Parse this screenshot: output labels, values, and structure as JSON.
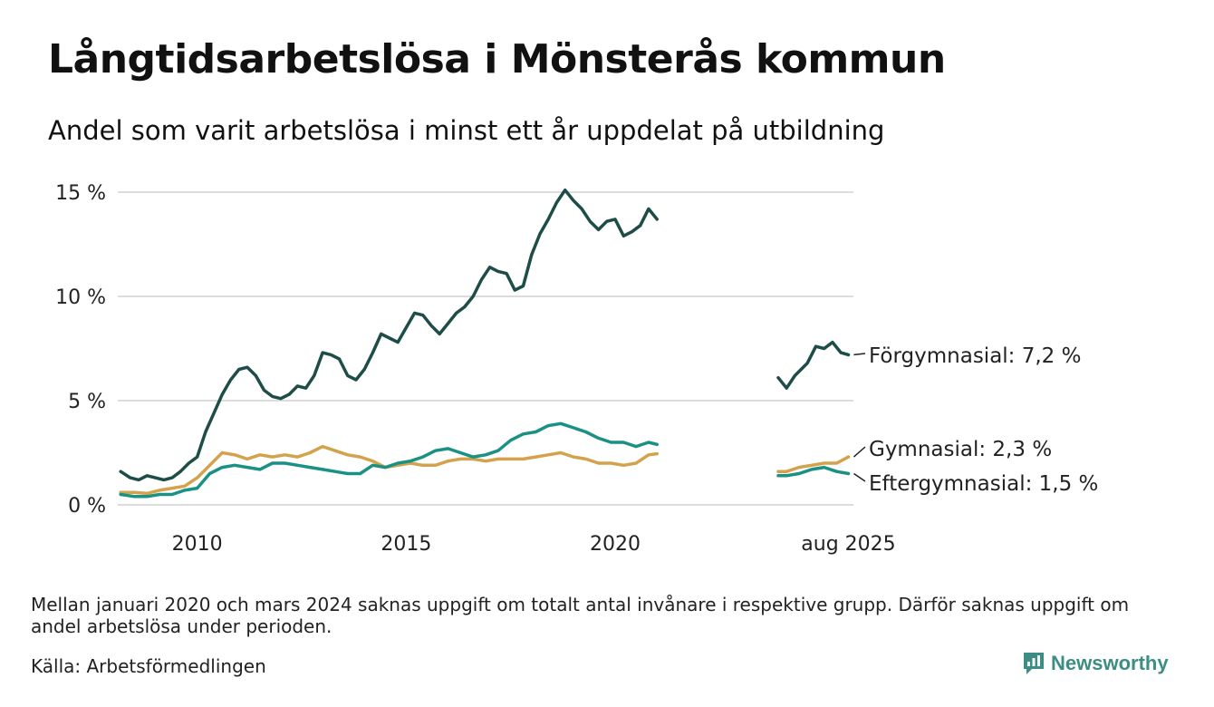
{
  "title": "Långtidsarbetslösa i Mönsterås kommun",
  "subtitle": "Andel som varit arbetslösa i minst ett år uppdelat på utbildning",
  "note": "Mellan januari 2020 och mars 2024 saknas uppgift om totalt antal invånare i respektive grupp. Därför saknas uppgift om andel arbetslösa under perioden.",
  "source": "Källa: Arbetsförmedlingen",
  "brand": "Newsworthy",
  "chart_data": {
    "type": "line",
    "y_tick_labels": [
      "0 %",
      "5 %",
      "10 %",
      "15 %"
    ],
    "y_ticks": [
      0,
      5,
      10,
      15
    ],
    "ylim": [
      0,
      15
    ],
    "x_tick_labels": [
      "2010",
      "2015",
      "2020",
      "aug 2025"
    ],
    "x_ticks": [
      2010,
      2015,
      2020,
      2025.58
    ],
    "xlim": [
      2008.1,
      2025.7
    ],
    "grid": true,
    "series": [
      {
        "name": "Förgymnasial",
        "end_label": "Förgymnasial: 7,2 %",
        "color": "#1e4d47",
        "segments": [
          [
            [
              2008.17,
              1.6
            ],
            [
              2008.4,
              1.3
            ],
            [
              2008.6,
              1.2
            ],
            [
              2008.8,
              1.4
            ],
            [
              2009.0,
              1.3
            ],
            [
              2009.2,
              1.2
            ],
            [
              2009.4,
              1.3
            ],
            [
              2009.6,
              1.6
            ],
            [
              2009.8,
              2.0
            ],
            [
              2010.0,
              2.3
            ],
            [
              2010.2,
              3.5
            ],
            [
              2010.4,
              4.4
            ],
            [
              2010.6,
              5.3
            ],
            [
              2010.8,
              6.0
            ],
            [
              2011.0,
              6.5
            ],
            [
              2011.2,
              6.6
            ],
            [
              2011.4,
              6.2
            ],
            [
              2011.6,
              5.5
            ],
            [
              2011.8,
              5.2
            ],
            [
              2012.0,
              5.1
            ],
            [
              2012.2,
              5.3
            ],
            [
              2012.4,
              5.7
            ],
            [
              2012.6,
              5.6
            ],
            [
              2012.8,
              6.2
            ],
            [
              2013.0,
              7.3
            ],
            [
              2013.2,
              7.2
            ],
            [
              2013.4,
              7.0
            ],
            [
              2013.6,
              6.2
            ],
            [
              2013.8,
              6.0
            ],
            [
              2014.0,
              6.5
            ],
            [
              2014.2,
              7.3
            ],
            [
              2014.4,
              8.2
            ],
            [
              2014.6,
              8.0
            ],
            [
              2014.8,
              7.8
            ],
            [
              2015.0,
              8.5
            ],
            [
              2015.2,
              9.2
            ],
            [
              2015.4,
              9.1
            ],
            [
              2015.6,
              8.6
            ],
            [
              2015.8,
              8.2
            ],
            [
              2016.0,
              8.7
            ],
            [
              2016.2,
              9.2
            ],
            [
              2016.4,
              9.5
            ],
            [
              2016.6,
              10.0
            ],
            [
              2016.8,
              10.8
            ],
            [
              2017.0,
              11.4
            ],
            [
              2017.2,
              11.2
            ],
            [
              2017.4,
              11.1
            ],
            [
              2017.6,
              10.3
            ],
            [
              2017.8,
              10.5
            ],
            [
              2018.0,
              12.0
            ],
            [
              2018.2,
              13.0
            ],
            [
              2018.4,
              13.7
            ],
            [
              2018.6,
              14.5
            ],
            [
              2018.8,
              15.1
            ],
            [
              2019.0,
              14.6
            ],
            [
              2019.2,
              14.2
            ],
            [
              2019.4,
              13.6
            ],
            [
              2019.6,
              13.2
            ],
            [
              2019.8,
              13.6
            ],
            [
              2020.0,
              13.7
            ],
            [
              2020.2,
              12.9
            ],
            [
              2020.4,
              13.1
            ],
            [
              2020.6,
              13.4
            ],
            [
              2020.8,
              14.2
            ],
            [
              2021.0,
              13.7
            ]
          ],
          [
            [
              2023.9,
              6.1
            ],
            [
              2024.1,
              5.6
            ],
            [
              2024.3,
              6.2
            ],
            [
              2024.6,
              6.8
            ],
            [
              2024.8,
              7.6
            ],
            [
              2025.0,
              7.5
            ],
            [
              2025.2,
              7.8
            ],
            [
              2025.4,
              7.3
            ],
            [
              2025.58,
              7.2
            ]
          ]
        ]
      },
      {
        "name": "Gymnasial",
        "end_label": "Gymnasial: 2,3 %",
        "color": "#d4a24c",
        "segments": [
          [
            [
              2008.17,
              0.6
            ],
            [
              2008.5,
              0.6
            ],
            [
              2008.8,
              0.55
            ],
            [
              2009.1,
              0.7
            ],
            [
              2009.4,
              0.8
            ],
            [
              2009.7,
              0.9
            ],
            [
              2010.0,
              1.3
            ],
            [
              2010.3,
              1.9
            ],
            [
              2010.6,
              2.5
            ],
            [
              2010.9,
              2.4
            ],
            [
              2011.2,
              2.2
            ],
            [
              2011.5,
              2.4
            ],
            [
              2011.8,
              2.3
            ],
            [
              2012.1,
              2.4
            ],
            [
              2012.4,
              2.3
            ],
            [
              2012.7,
              2.5
            ],
            [
              2013.0,
              2.8
            ],
            [
              2013.3,
              2.6
            ],
            [
              2013.6,
              2.4
            ],
            [
              2013.9,
              2.3
            ],
            [
              2014.2,
              2.1
            ],
            [
              2014.5,
              1.8
            ],
            [
              2014.8,
              1.9
            ],
            [
              2015.1,
              2.0
            ],
            [
              2015.4,
              1.9
            ],
            [
              2015.7,
              1.9
            ],
            [
              2016.0,
              2.1
            ],
            [
              2016.3,
              2.2
            ],
            [
              2016.6,
              2.2
            ],
            [
              2016.9,
              2.1
            ],
            [
              2017.2,
              2.2
            ],
            [
              2017.5,
              2.2
            ],
            [
              2017.8,
              2.2
            ],
            [
              2018.1,
              2.3
            ],
            [
              2018.4,
              2.4
            ],
            [
              2018.7,
              2.5
            ],
            [
              2019.0,
              2.3
            ],
            [
              2019.3,
              2.2
            ],
            [
              2019.6,
              2.0
            ],
            [
              2019.9,
              2.0
            ],
            [
              2020.2,
              1.9
            ],
            [
              2020.5,
              2.0
            ],
            [
              2020.8,
              2.4
            ],
            [
              2021.0,
              2.45
            ]
          ],
          [
            [
              2023.9,
              1.6
            ],
            [
              2024.1,
              1.6
            ],
            [
              2024.4,
              1.8
            ],
            [
              2024.7,
              1.9
            ],
            [
              2025.0,
              2.0
            ],
            [
              2025.3,
              2.0
            ],
            [
              2025.58,
              2.3
            ]
          ]
        ]
      },
      {
        "name": "Eftergymnasial",
        "end_label": "Eftergymnasial: 1,5 %",
        "color": "#1a9184",
        "segments": [
          [
            [
              2008.17,
              0.5
            ],
            [
              2008.5,
              0.4
            ],
            [
              2008.8,
              0.4
            ],
            [
              2009.1,
              0.5
            ],
            [
              2009.4,
              0.5
            ],
            [
              2009.7,
              0.7
            ],
            [
              2010.0,
              0.8
            ],
            [
              2010.3,
              1.5
            ],
            [
              2010.6,
              1.8
            ],
            [
              2010.9,
              1.9
            ],
            [
              2011.2,
              1.8
            ],
            [
              2011.5,
              1.7
            ],
            [
              2011.8,
              2.0
            ],
            [
              2012.1,
              2.0
            ],
            [
              2012.4,
              1.9
            ],
            [
              2012.7,
              1.8
            ],
            [
              2013.0,
              1.7
            ],
            [
              2013.3,
              1.6
            ],
            [
              2013.6,
              1.5
            ],
            [
              2013.9,
              1.5
            ],
            [
              2014.2,
              1.9
            ],
            [
              2014.5,
              1.8
            ],
            [
              2014.8,
              2.0
            ],
            [
              2015.1,
              2.1
            ],
            [
              2015.4,
              2.3
            ],
            [
              2015.7,
              2.6
            ],
            [
              2016.0,
              2.7
            ],
            [
              2016.3,
              2.5
            ],
            [
              2016.6,
              2.3
            ],
            [
              2016.9,
              2.4
            ],
            [
              2017.2,
              2.6
            ],
            [
              2017.5,
              3.1
            ],
            [
              2017.8,
              3.4
            ],
            [
              2018.1,
              3.5
            ],
            [
              2018.4,
              3.8
            ],
            [
              2018.7,
              3.9
            ],
            [
              2019.0,
              3.7
            ],
            [
              2019.3,
              3.5
            ],
            [
              2019.6,
              3.2
            ],
            [
              2019.9,
              3.0
            ],
            [
              2020.2,
              3.0
            ],
            [
              2020.5,
              2.8
            ],
            [
              2020.8,
              3.0
            ],
            [
              2021.0,
              2.9
            ]
          ],
          [
            [
              2023.9,
              1.4
            ],
            [
              2024.1,
              1.4
            ],
            [
              2024.4,
              1.5
            ],
            [
              2024.7,
              1.7
            ],
            [
              2025.0,
              1.8
            ],
            [
              2025.3,
              1.6
            ],
            [
              2025.58,
              1.5
            ]
          ]
        ]
      }
    ]
  }
}
